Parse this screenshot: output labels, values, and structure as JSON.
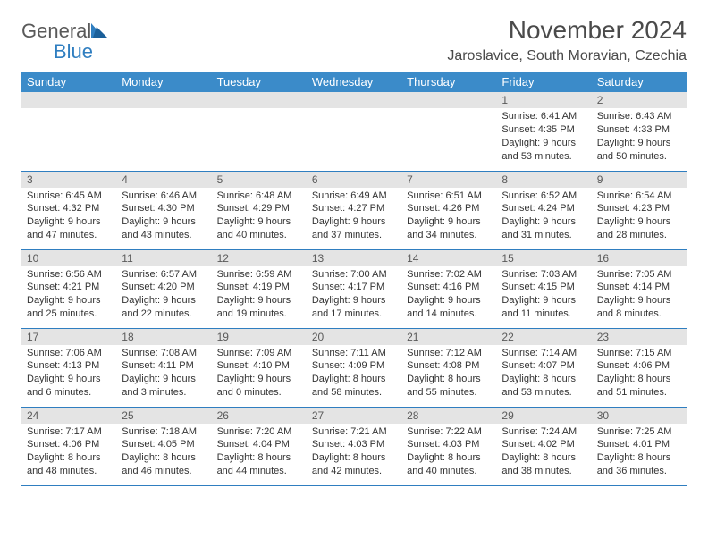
{
  "logo": {
    "text1": "General",
    "text2": "Blue"
  },
  "header": {
    "title": "November 2024",
    "location": "Jaroslavice, South Moravian, Czechia"
  },
  "colors": {
    "header_bg": "#3b8bc9",
    "row_border": "#2f7ec0",
    "daynum_bg": "#e4e4e4",
    "text_gray": "#5a5a5a",
    "logo_blue": "#2f7ec0",
    "body_text": "#333333",
    "background": "#ffffff"
  },
  "fonts": {
    "title_pt": 28,
    "location_pt": 16,
    "header_cell_pt": 13,
    "daynum_pt": 12,
    "details_pt": 11
  },
  "calendar": {
    "type": "table",
    "columns": [
      "Sunday",
      "Monday",
      "Tuesday",
      "Wednesday",
      "Thursday",
      "Friday",
      "Saturday"
    ],
    "weeks": [
      [
        null,
        null,
        null,
        null,
        null,
        {
          "num": "1",
          "sunrise": "Sunrise: 6:41 AM",
          "sunset": "Sunset: 4:35 PM",
          "daylight": "Daylight: 9 hours and 53 minutes."
        },
        {
          "num": "2",
          "sunrise": "Sunrise: 6:43 AM",
          "sunset": "Sunset: 4:33 PM",
          "daylight": "Daylight: 9 hours and 50 minutes."
        }
      ],
      [
        {
          "num": "3",
          "sunrise": "Sunrise: 6:45 AM",
          "sunset": "Sunset: 4:32 PM",
          "daylight": "Daylight: 9 hours and 47 minutes."
        },
        {
          "num": "4",
          "sunrise": "Sunrise: 6:46 AM",
          "sunset": "Sunset: 4:30 PM",
          "daylight": "Daylight: 9 hours and 43 minutes."
        },
        {
          "num": "5",
          "sunrise": "Sunrise: 6:48 AM",
          "sunset": "Sunset: 4:29 PM",
          "daylight": "Daylight: 9 hours and 40 minutes."
        },
        {
          "num": "6",
          "sunrise": "Sunrise: 6:49 AM",
          "sunset": "Sunset: 4:27 PM",
          "daylight": "Daylight: 9 hours and 37 minutes."
        },
        {
          "num": "7",
          "sunrise": "Sunrise: 6:51 AM",
          "sunset": "Sunset: 4:26 PM",
          "daylight": "Daylight: 9 hours and 34 minutes."
        },
        {
          "num": "8",
          "sunrise": "Sunrise: 6:52 AM",
          "sunset": "Sunset: 4:24 PM",
          "daylight": "Daylight: 9 hours and 31 minutes."
        },
        {
          "num": "9",
          "sunrise": "Sunrise: 6:54 AM",
          "sunset": "Sunset: 4:23 PM",
          "daylight": "Daylight: 9 hours and 28 minutes."
        }
      ],
      [
        {
          "num": "10",
          "sunrise": "Sunrise: 6:56 AM",
          "sunset": "Sunset: 4:21 PM",
          "daylight": "Daylight: 9 hours and 25 minutes."
        },
        {
          "num": "11",
          "sunrise": "Sunrise: 6:57 AM",
          "sunset": "Sunset: 4:20 PM",
          "daylight": "Daylight: 9 hours and 22 minutes."
        },
        {
          "num": "12",
          "sunrise": "Sunrise: 6:59 AM",
          "sunset": "Sunset: 4:19 PM",
          "daylight": "Daylight: 9 hours and 19 minutes."
        },
        {
          "num": "13",
          "sunrise": "Sunrise: 7:00 AM",
          "sunset": "Sunset: 4:17 PM",
          "daylight": "Daylight: 9 hours and 17 minutes."
        },
        {
          "num": "14",
          "sunrise": "Sunrise: 7:02 AM",
          "sunset": "Sunset: 4:16 PM",
          "daylight": "Daylight: 9 hours and 14 minutes."
        },
        {
          "num": "15",
          "sunrise": "Sunrise: 7:03 AM",
          "sunset": "Sunset: 4:15 PM",
          "daylight": "Daylight: 9 hours and 11 minutes."
        },
        {
          "num": "16",
          "sunrise": "Sunrise: 7:05 AM",
          "sunset": "Sunset: 4:14 PM",
          "daylight": "Daylight: 9 hours and 8 minutes."
        }
      ],
      [
        {
          "num": "17",
          "sunrise": "Sunrise: 7:06 AM",
          "sunset": "Sunset: 4:13 PM",
          "daylight": "Daylight: 9 hours and 6 minutes."
        },
        {
          "num": "18",
          "sunrise": "Sunrise: 7:08 AM",
          "sunset": "Sunset: 4:11 PM",
          "daylight": "Daylight: 9 hours and 3 minutes."
        },
        {
          "num": "19",
          "sunrise": "Sunrise: 7:09 AM",
          "sunset": "Sunset: 4:10 PM",
          "daylight": "Daylight: 9 hours and 0 minutes."
        },
        {
          "num": "20",
          "sunrise": "Sunrise: 7:11 AM",
          "sunset": "Sunset: 4:09 PM",
          "daylight": "Daylight: 8 hours and 58 minutes."
        },
        {
          "num": "21",
          "sunrise": "Sunrise: 7:12 AM",
          "sunset": "Sunset: 4:08 PM",
          "daylight": "Daylight: 8 hours and 55 minutes."
        },
        {
          "num": "22",
          "sunrise": "Sunrise: 7:14 AM",
          "sunset": "Sunset: 4:07 PM",
          "daylight": "Daylight: 8 hours and 53 minutes."
        },
        {
          "num": "23",
          "sunrise": "Sunrise: 7:15 AM",
          "sunset": "Sunset: 4:06 PM",
          "daylight": "Daylight: 8 hours and 51 minutes."
        }
      ],
      [
        {
          "num": "24",
          "sunrise": "Sunrise: 7:17 AM",
          "sunset": "Sunset: 4:06 PM",
          "daylight": "Daylight: 8 hours and 48 minutes."
        },
        {
          "num": "25",
          "sunrise": "Sunrise: 7:18 AM",
          "sunset": "Sunset: 4:05 PM",
          "daylight": "Daylight: 8 hours and 46 minutes."
        },
        {
          "num": "26",
          "sunrise": "Sunrise: 7:20 AM",
          "sunset": "Sunset: 4:04 PM",
          "daylight": "Daylight: 8 hours and 44 minutes."
        },
        {
          "num": "27",
          "sunrise": "Sunrise: 7:21 AM",
          "sunset": "Sunset: 4:03 PM",
          "daylight": "Daylight: 8 hours and 42 minutes."
        },
        {
          "num": "28",
          "sunrise": "Sunrise: 7:22 AM",
          "sunset": "Sunset: 4:03 PM",
          "daylight": "Daylight: 8 hours and 40 minutes."
        },
        {
          "num": "29",
          "sunrise": "Sunrise: 7:24 AM",
          "sunset": "Sunset: 4:02 PM",
          "daylight": "Daylight: 8 hours and 38 minutes."
        },
        {
          "num": "30",
          "sunrise": "Sunrise: 7:25 AM",
          "sunset": "Sunset: 4:01 PM",
          "daylight": "Daylight: 8 hours and 36 minutes."
        }
      ]
    ]
  }
}
